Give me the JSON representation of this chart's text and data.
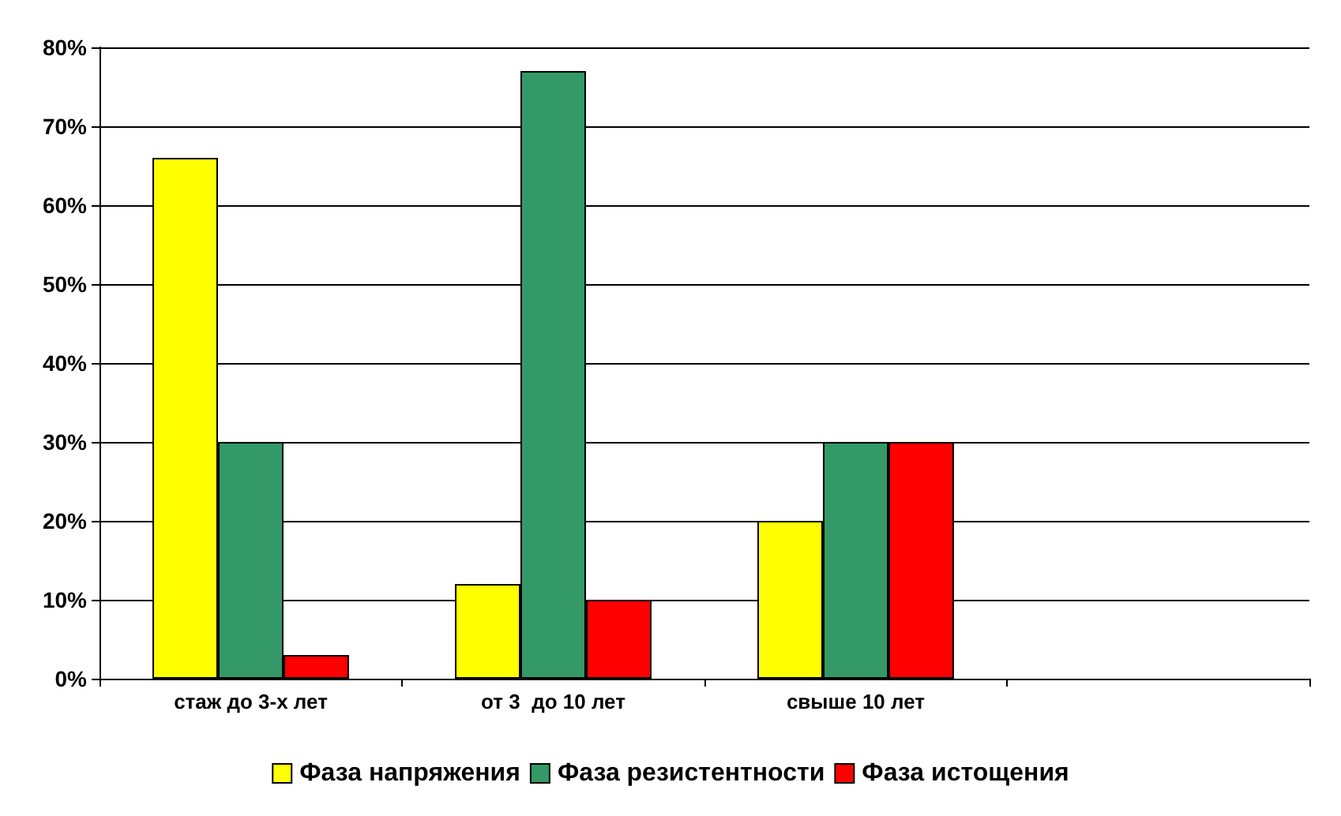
{
  "chart_data": {
    "type": "bar",
    "categories": [
      "стаж до 3-х лет",
      "от 3  до 10 лет",
      "свыше 10 лет",
      null
    ],
    "series": [
      {
        "name": "Фаза напряжения",
        "color": "#ffff00",
        "values": [
          66,
          12,
          20,
          null
        ]
      },
      {
        "name": "Фаза резистентности",
        "color": "#339966",
        "values": [
          30,
          77,
          30,
          null
        ]
      },
      {
        "name": "Фаза истощения",
        "color": "#ff0000",
        "values": [
          3,
          10,
          30,
          null
        ]
      }
    ],
    "ylim": [
      0,
      80
    ],
    "yticks": [
      {
        "value": 0,
        "label": "0%"
      },
      {
        "value": 10,
        "label": "10%"
      },
      {
        "value": 20,
        "label": "20%"
      },
      {
        "value": 30,
        "label": "30%"
      },
      {
        "value": 40,
        "label": "40%"
      },
      {
        "value": 50,
        "label": "50%"
      },
      {
        "value": 60,
        "label": "60%"
      },
      {
        "value": 70,
        "label": "70%"
      },
      {
        "value": 80,
        "label": "80%"
      }
    ],
    "grid": "y",
    "legend": "bottom"
  }
}
